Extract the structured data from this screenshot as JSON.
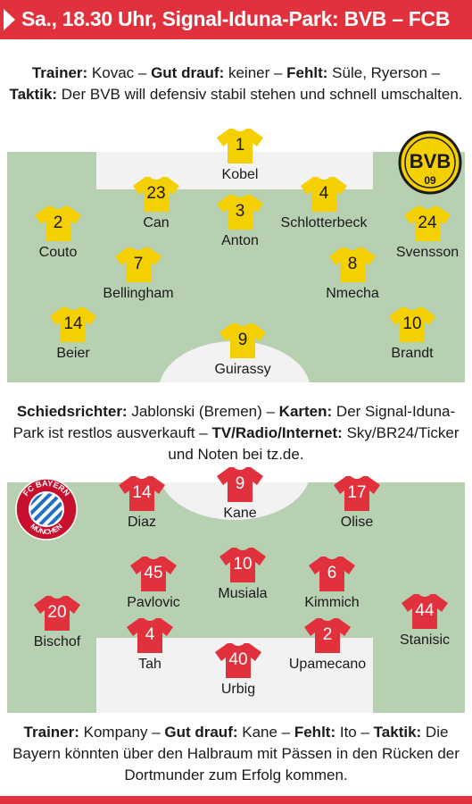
{
  "header": {
    "title": "Sa., 18.30 Uhr, Signal-Iduna-Park: BVB – FCB"
  },
  "bvb": {
    "info": [
      {
        "label": "Trainer:",
        "text": " Kovac – "
      },
      {
        "label": "Gut drauf:",
        "text": " keiner – "
      },
      {
        "label": "Fehlt:",
        "text": " Süle, Ryerson – "
      },
      {
        "label": "Taktik:",
        "text": " Der BVB will defensiv stabil stehen und schnell umschalten."
      }
    ],
    "logo_text": "BVB",
    "logo_year": "09",
    "shirt_color": "#f5d000",
    "players": [
      {
        "number": "1",
        "name": "Kobel"
      },
      {
        "number": "23",
        "name": "Can"
      },
      {
        "number": "3",
        "name": "Anton"
      },
      {
        "number": "4",
        "name": "Schlotterbeck"
      },
      {
        "number": "2",
        "name": "Couto"
      },
      {
        "number": "24",
        "name": "Svensson"
      },
      {
        "number": "7",
        "name": "Bellingham"
      },
      {
        "number": "8",
        "name": "Nmecha"
      },
      {
        "number": "14",
        "name": "Beier"
      },
      {
        "number": "9",
        "name": "Guirassy"
      },
      {
        "number": "10",
        "name": "Brandt"
      }
    ]
  },
  "middle": {
    "info": [
      {
        "label": "Schiedsrichter:",
        "text": " Jablonski (Bremen) – "
      },
      {
        "label": "Karten:",
        "text": " Der Signal-Iduna-Park ist restlos ausverkauft – "
      },
      {
        "label": "TV/Radio/Internet:",
        "text": " Sky/BR24/Ticker und Noten bei tz.de."
      }
    ]
  },
  "fcb": {
    "logo_top": "FC BAYERN",
    "logo_bottom": "MÜNCHEN",
    "shirt_color": "#e0313c",
    "players": [
      {
        "number": "14",
        "name": "Diaz"
      },
      {
        "number": "9",
        "name": "Kane"
      },
      {
        "number": "17",
        "name": "Olise"
      },
      {
        "number": "45",
        "name": "Pavlovic"
      },
      {
        "number": "10",
        "name": "Musiala"
      },
      {
        "number": "6",
        "name": "Kimmich"
      },
      {
        "number": "20",
        "name": "Bischof"
      },
      {
        "number": "44",
        "name": "Stanisic"
      },
      {
        "number": "4",
        "name": "Tah"
      },
      {
        "number": "2",
        "name": "Upamecano"
      },
      {
        "number": "40",
        "name": "Urbig"
      }
    ],
    "info": [
      {
        "label": "Trainer:",
        "text": " Kompany – "
      },
      {
        "label": "Gut drauf:",
        "text": " Kane – "
      },
      {
        "label": "Fehlt:",
        "text": " Ito – "
      },
      {
        "label": "Taktik:",
        "text": " Die Bayern könnten über den Halbraum mit Pässen in den Rücken der Dortmunder zum Erfolg kommen."
      }
    ]
  },
  "colors": {
    "accent": "#e0313c",
    "pitch": "#b8d0b2",
    "bvb_shirt": "#f5d000",
    "fcb_shirt": "#e0313c"
  }
}
